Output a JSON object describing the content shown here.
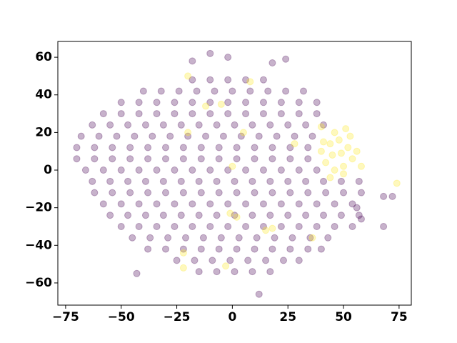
{
  "chart_data": {
    "type": "scatter",
    "xlim": [
      -78.5,
      80.5
    ],
    "ylim": [
      -71.8,
      68.4
    ],
    "xticks": [
      {
        "value": -75,
        "label": "−75"
      },
      {
        "value": -50,
        "label": "−50"
      },
      {
        "value": -25,
        "label": "−25"
      },
      0,
      25,
      50,
      75
    ],
    "yticks": [
      {
        "value": -60,
        "label": "−60"
      },
      {
        "value": -40,
        "label": "−40"
      },
      {
        "value": -20,
        "label": "−20"
      },
      0,
      20,
      40,
      60
    ],
    "opacity": 0.3,
    "series": [
      {
        "color": "#440154",
        "x": [
          -18,
          -10,
          -2,
          6,
          14,
          -40,
          -32,
          -24,
          -16,
          -8,
          0,
          8,
          16,
          24,
          32,
          -50,
          -42,
          -34,
          -26,
          -18,
          -10,
          -2,
          6,
          14,
          22,
          30,
          38,
          -58,
          -50,
          -42,
          -34,
          -26,
          -18,
          -10,
          -2,
          6,
          14,
          22,
          30,
          38,
          -63,
          -55,
          -47,
          -39,
          -31,
          -23,
          -15,
          -7,
          1,
          9,
          17,
          25,
          33,
          41,
          -68,
          -60,
          -52,
          -44,
          -36,
          -28,
          -20,
          -12,
          -4,
          4,
          12,
          20,
          28,
          36,
          -70,
          -62,
          -54,
          -46,
          -38,
          -30,
          -22,
          -14,
          -6,
          2,
          10,
          18,
          26,
          34,
          -70,
          -62,
          -54,
          -46,
          -38,
          -30,
          -22,
          -14,
          -6,
          2,
          10,
          18,
          26,
          34,
          -66,
          -58,
          -50,
          -42,
          -34,
          -26,
          -18,
          -10,
          -2,
          6,
          14,
          22,
          30,
          38,
          -63,
          -55,
          -47,
          -39,
          -31,
          -23,
          -15,
          -7,
          1,
          9,
          17,
          25,
          33,
          41,
          49,
          57,
          -62,
          -54,
          -46,
          -38,
          -30,
          -22,
          -14,
          -6,
          2,
          10,
          18,
          26,
          34,
          42,
          50,
          58,
          -58,
          -50,
          -42,
          -34,
          -26,
          -18,
          -10,
          -2,
          6,
          14,
          22,
          30,
          38,
          46,
          54,
          -55,
          -47,
          -39,
          -31,
          -23,
          -15,
          -7,
          1,
          9,
          17,
          25,
          33,
          41,
          49,
          57,
          -50,
          -42,
          -34,
          -26,
          -18,
          -10,
          -2,
          6,
          14,
          22,
          30,
          38,
          46,
          54,
          -45,
          -37,
          -29,
          -21,
          -13,
          -5,
          3,
          11,
          19,
          27,
          35,
          43,
          -38,
          -30,
          -22,
          -14,
          -6,
          2,
          10,
          18,
          26,
          34,
          40,
          -25,
          -17,
          -9,
          -1,
          7,
          15,
          23,
          30,
          -15,
          -7,
          1,
          9,
          17,
          -18,
          -10,
          -2,
          18,
          24,
          -43,
          12,
          68,
          72,
          68,
          56,
          58
        ],
        "values": [
          48,
          48,
          48,
          48,
          48,
          42,
          42,
          42,
          42,
          42,
          42,
          42,
          42,
          42,
          42,
          36,
          36,
          36,
          36,
          36,
          36,
          36,
          36,
          36,
          36,
          36,
          36,
          30,
          30,
          30,
          30,
          30,
          30,
          30,
          30,
          30,
          30,
          30,
          30,
          30,
          24,
          24,
          24,
          24,
          24,
          24,
          24,
          24,
          24,
          24,
          24,
          24,
          24,
          24,
          18,
          18,
          18,
          18,
          18,
          18,
          18,
          18,
          18,
          18,
          18,
          18,
          18,
          18,
          12,
          12,
          12,
          12,
          12,
          12,
          12,
          12,
          12,
          12,
          12,
          12,
          12,
          12,
          6,
          6,
          6,
          6,
          6,
          6,
          6,
          6,
          6,
          6,
          6,
          6,
          6,
          6,
          0,
          0,
          0,
          0,
          0,
          0,
          0,
          0,
          0,
          0,
          0,
          0,
          0,
          0,
          -6,
          -6,
          -6,
          -6,
          -6,
          -6,
          -6,
          -6,
          -6,
          -6,
          -6,
          -6,
          -6,
          -6,
          -6,
          -6,
          -12,
          -12,
          -12,
          -12,
          -12,
          -12,
          -12,
          -12,
          -12,
          -12,
          -12,
          -12,
          -12,
          -12,
          -12,
          -12,
          -18,
          -18,
          -18,
          -18,
          -18,
          -18,
          -18,
          -18,
          -18,
          -18,
          -18,
          -18,
          -18,
          -18,
          -18,
          -24,
          -24,
          -24,
          -24,
          -24,
          -24,
          -24,
          -24,
          -24,
          -24,
          -24,
          -24,
          -24,
          -24,
          -24,
          -30,
          -30,
          -30,
          -30,
          -30,
          -30,
          -30,
          -30,
          -30,
          -30,
          -30,
          -30,
          -30,
          -30,
          -36,
          -36,
          -36,
          -36,
          -36,
          -36,
          -36,
          -36,
          -36,
          -36,
          -36,
          -36,
          -42,
          -42,
          -42,
          -42,
          -42,
          -42,
          -42,
          -42,
          -42,
          -42,
          -42,
          -48,
          -48,
          -48,
          -48,
          -48,
          -48,
          -48,
          -48,
          -54,
          -54,
          -54,
          -54,
          -54,
          58,
          62,
          60,
          57,
          59,
          -55,
          -66,
          -14,
          -14,
          -30,
          -20,
          -26
        ]
      },
      {
        "color": "#fde725",
        "x": [
          40,
          44,
          48,
          52,
          54,
          50,
          46,
          42,
          45,
          49,
          53,
          46,
          56,
          50,
          44,
          58,
          41,
          51,
          -20,
          -12,
          -5,
          0,
          5,
          -1,
          2,
          15,
          18,
          36,
          -22,
          -20,
          -3,
          -22,
          74,
          28,
          40,
          8
        ],
        "values": [
          10,
          14,
          16,
          12,
          6,
          2,
          0,
          4,
          8,
          9,
          18,
          20,
          10,
          -2,
          -4,
          2,
          15,
          22,
          20,
          34,
          35,
          2,
          20,
          -23,
          -25,
          -32,
          -31,
          -36,
          -44,
          50,
          -51,
          -52,
          -7,
          14,
          23,
          47
        ]
      }
    ]
  }
}
